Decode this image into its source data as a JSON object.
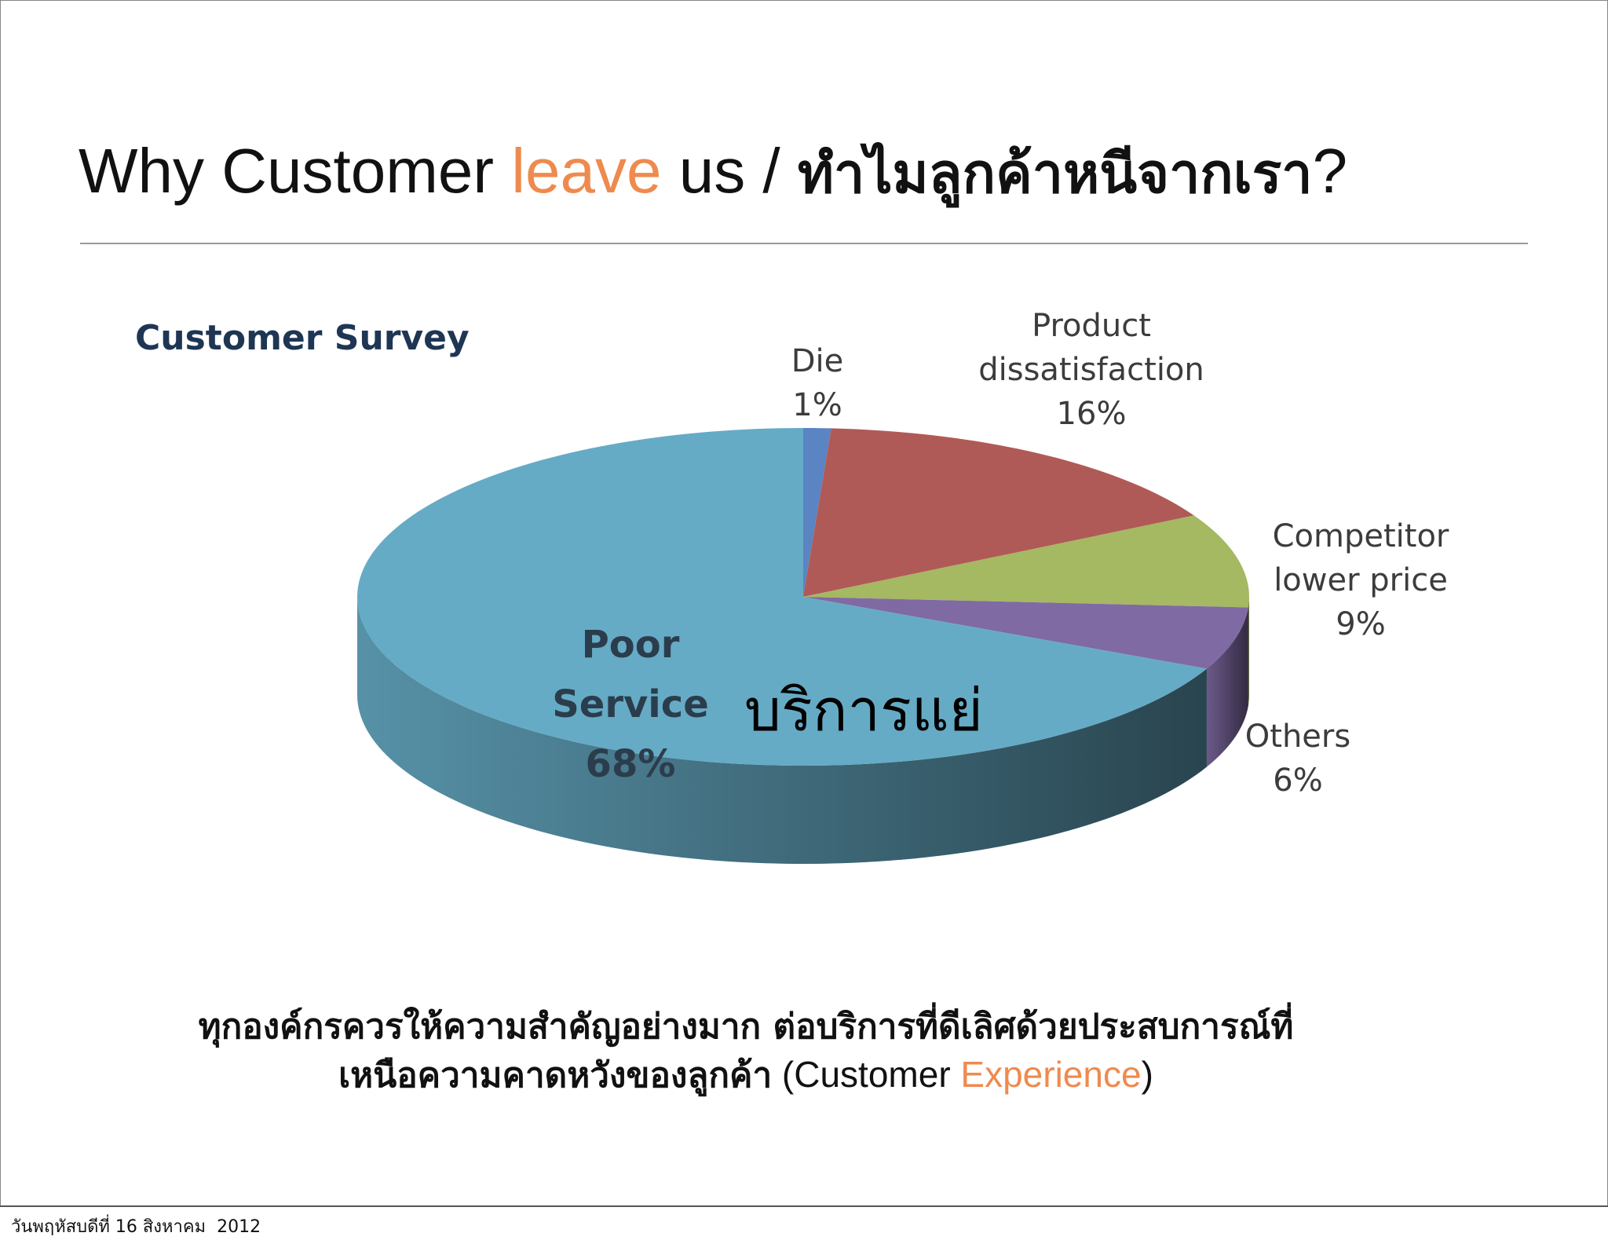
{
  "slide": {
    "title": [
      "Why Customer ",
      "leave",
      " us / ",
      "ทำไมลูกค้าหนีจากเรา",
      "?"
    ],
    "body": {
      "line1": "ทุกองค์กรควรให้ความสำคัญอย่างมาก ต่อบริการที่ดีเลิศด้วยประสบการณ์ที่",
      "line2": [
        "เหนือความคาดหวังของลูกค้า",
        " (Customer ",
        "Experience",
        ")"
      ]
    },
    "footer": "วันพฤหัสบดีที่ 16 สิงหาคม  2012"
  },
  "chart_data": {
    "type": "pie",
    "title": "Customer Survey",
    "categories": [
      "Die",
      "Product dissatisfaction",
      "Competitor lower price",
      "Others",
      "Poor Service"
    ],
    "values": [
      1,
      16,
      9,
      6,
      68
    ],
    "value_labels": [
      "1%",
      "16%",
      "9%",
      "6%",
      "68%"
    ],
    "colors": [
      "#5a84c2",
      "#b05a58",
      "#a5b862",
      "#7f6aa3",
      "#66abc5"
    ],
    "annotation": "บริการแย่"
  }
}
